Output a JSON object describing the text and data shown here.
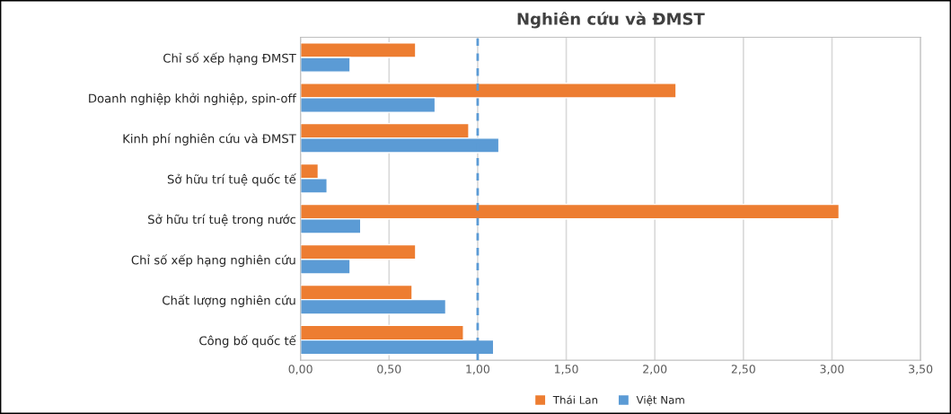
{
  "chart_data": {
    "type": "bar",
    "orientation": "horizontal",
    "title": "Nghiên cứu và ĐMST",
    "categories": [
      "Chỉ số xếp hạng ĐMST",
      "Doanh nghiệp khởi nghiệp, spin-off",
      "Kinh phí nghiên cứu và ĐMST",
      "Sở hữu trí tuệ quốc tế",
      "Sở hữu trí tuệ trong nước",
      "Chỉ số xếp hạng nghiên cứu",
      "Chất lượng nghiên cứu",
      "Công bố quốc tế"
    ],
    "series": [
      {
        "name": "Thái Lan",
        "color": "#ed7d31",
        "values": [
          0.65,
          2.12,
          0.95,
          0.1,
          3.04,
          0.65,
          0.63,
          0.92
        ]
      },
      {
        "name": "Việt Nam",
        "color": "#5b9bd5",
        "values": [
          0.28,
          0.76,
          1.12,
          0.15,
          0.34,
          0.28,
          0.82,
          1.09
        ]
      }
    ],
    "xlim": [
      0,
      3.5
    ],
    "xticks": [
      {
        "value": 0,
        "label": "0,00"
      },
      {
        "value": 0.5,
        "label": "0,50"
      },
      {
        "value": 1,
        "label": "1,00"
      },
      {
        "value": 1.5,
        "label": "1,50"
      },
      {
        "value": 2,
        "label": "2,00"
      },
      {
        "value": 2.5,
        "label": "2,50"
      },
      {
        "value": 3,
        "label": "3,00"
      },
      {
        "value": 3.5,
        "label": "3,50"
      }
    ],
    "ref_lines": [
      {
        "axis": "x",
        "value": 1,
        "color": "#5b9bd5",
        "line_style": "dashed"
      }
    ],
    "grid": "x",
    "legend": "bottom"
  }
}
